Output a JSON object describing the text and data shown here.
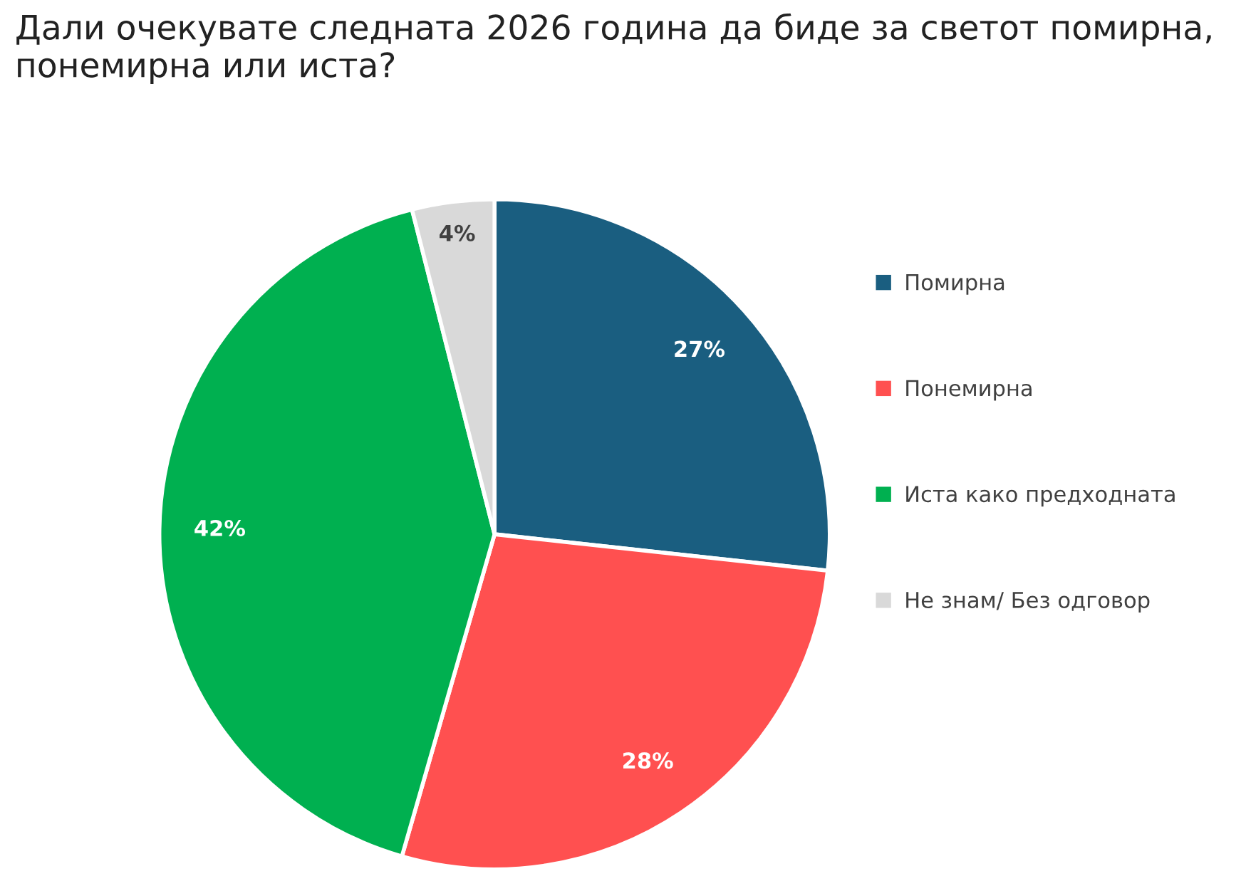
{
  "chart_data": {
    "type": "pie",
    "title": "Дали очекувате следната 2026 година да биде за светот помирна, понемирна или иста?",
    "categories": [
      "Помирна",
      "Понемирна",
      "Иста како предходната",
      "Не знам/ Без одговор"
    ],
    "values": [
      27,
      28,
      42,
      4
    ],
    "colors": [
      "#1a5e80",
      "#ff5050",
      "#00b050",
      "#d9d9d9"
    ],
    "value_labels": [
      "27%",
      "28%",
      "42%",
      "4%"
    ],
    "legend": "right"
  }
}
